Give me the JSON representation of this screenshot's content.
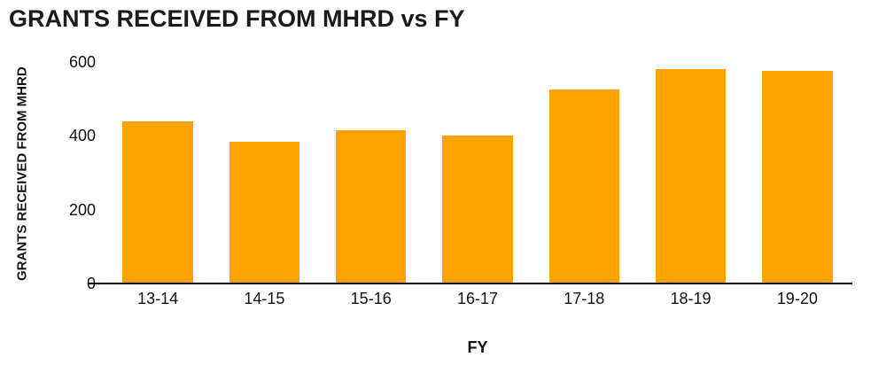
{
  "chart_data": {
    "type": "bar",
    "title": "GRANTS RECEIVED FROM MHRD vs FY",
    "xlabel": "FY",
    "ylabel": "GRANTS RECEIVED FROM MHRD",
    "categories": [
      "13-14",
      "14-15",
      "15-16",
      "16-17",
      "17-18",
      "18-19",
      "19-20"
    ],
    "values": [
      440,
      385,
      415,
      400,
      525,
      580,
      575
    ],
    "ylim": [
      0,
      600
    ],
    "yticks": [
      0,
      200,
      400,
      600
    ],
    "bar_color": "#FFA200",
    "axis_color": "#000000",
    "grid": "off",
    "legend": "none"
  }
}
